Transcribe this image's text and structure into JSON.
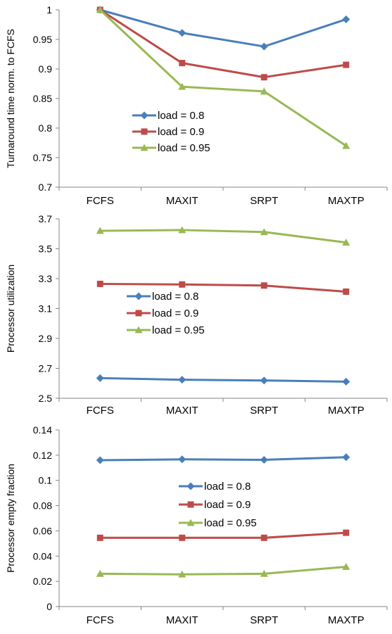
{
  "chart_data": [
    {
      "type": "line",
      "ylabel": "Turnaround time norm. to FCFS",
      "categories": [
        "FCFS",
        "MAXIT",
        "SRPT",
        "MAXTP"
      ],
      "ylim": [
        0.7,
        1
      ],
      "yticks": [
        "0.7",
        "0.75",
        "0.8",
        "0.85",
        "0.9",
        "0.95",
        "1"
      ],
      "legend": "center-left",
      "series": [
        {
          "name": "load = 0.8",
          "color": "#4a7ebb",
          "marker": "diamond",
          "values": [
            1.0,
            0.961,
            0.938,
            0.984
          ]
        },
        {
          "name": "load = 0.9",
          "color": "#be4b48",
          "marker": "square",
          "values": [
            1.0,
            0.91,
            0.886,
            0.907
          ]
        },
        {
          "name": "load = 0.95",
          "color": "#98b954",
          "marker": "triangle",
          "values": [
            1.0,
            0.87,
            0.862,
            0.77
          ]
        }
      ]
    },
    {
      "type": "line",
      "ylabel": "Processor utilization",
      "categories": [
        "FCFS",
        "MAXIT",
        "SRPT",
        "MAXTP"
      ],
      "ylim": [
        2.5,
        3.7
      ],
      "yticks": [
        "2.5",
        "2.7",
        "2.9",
        "3.1",
        "3.3",
        "3.5",
        "3.7"
      ],
      "legend": "center-left",
      "series": [
        {
          "name": "load = 0.8",
          "color": "#4a7ebb",
          "marker": "diamond",
          "values": [
            2.635,
            2.624,
            2.619,
            2.611
          ]
        },
        {
          "name": "load = 0.9",
          "color": "#be4b48",
          "marker": "square",
          "values": [
            3.265,
            3.261,
            3.254,
            3.213
          ]
        },
        {
          "name": "load = 0.95",
          "color": "#98b954",
          "marker": "triangle",
          "values": [
            3.62,
            3.625,
            3.612,
            3.542
          ]
        }
      ]
    },
    {
      "type": "line",
      "ylabel": "Processor empty fraction",
      "categories": [
        "FCFS",
        "MAXIT",
        "SRPT",
        "MAXTP"
      ],
      "ylim": [
        0,
        0.14
      ],
      "yticks": [
        "0",
        "0.02",
        "0.04",
        "0.06",
        "0.08",
        "0.1",
        "0.12",
        "0.14"
      ],
      "legend": "center",
      "series": [
        {
          "name": "load = 0.8",
          "color": "#4a7ebb",
          "marker": "diamond",
          "values": [
            0.116,
            0.1167,
            0.1163,
            0.1184
          ]
        },
        {
          "name": "load = 0.9",
          "color": "#be4b48",
          "marker": "square",
          "values": [
            0.0545,
            0.0545,
            0.0545,
            0.0585
          ]
        },
        {
          "name": "load = 0.95",
          "color": "#98b954",
          "marker": "triangle",
          "values": [
            0.026,
            0.0255,
            0.026,
            0.0315
          ]
        }
      ]
    }
  ]
}
